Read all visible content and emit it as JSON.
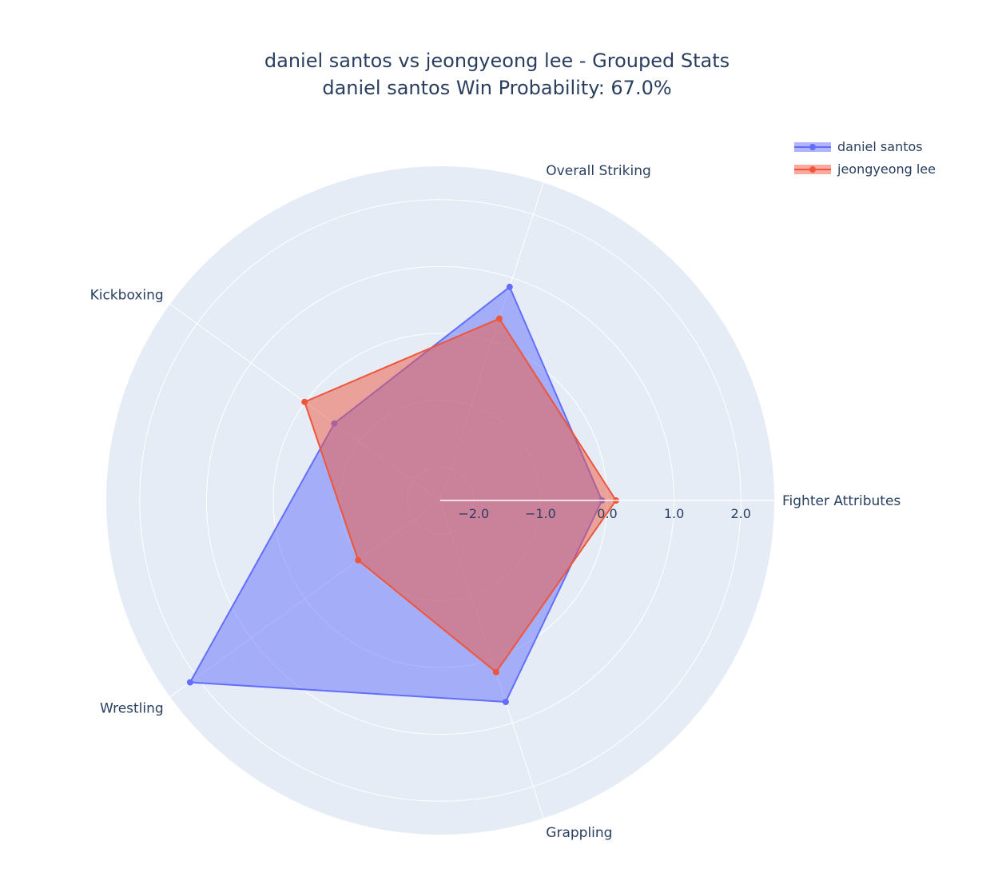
{
  "title": {
    "line1": "daniel santos vs jeongyeong lee - Grouped Stats",
    "line2": "daniel santos Win Probability: 67.0%"
  },
  "colors": {
    "polar_background": "#e5ecf6",
    "grid": "#ffffff",
    "text": "#2a3f5f"
  },
  "chart_data": {
    "type": "radar",
    "categories": [
      "Fighter Attributes",
      "Overall Striking",
      "Kickboxing",
      "Wrestling",
      "Grappling"
    ],
    "radial_axis": {
      "range": [
        -2.5,
        2.5
      ],
      "tick_values": [
        -2.0,
        -1.0,
        0.0,
        1.0,
        2.0
      ],
      "tick_labels": [
        "−2.0",
        "−1.0",
        "0.0",
        "1.0",
        "2.0"
      ]
    },
    "series": [
      {
        "name": "daniel santos",
        "color": "#636efa",
        "fill": "rgba(99,110,250,0.5)",
        "values": [
          -0.08,
          0.86,
          -0.54,
          2.13,
          0.67
        ]
      },
      {
        "name": "jeongyeong lee",
        "color": "#ef553b",
        "fill": "rgba(239,85,59,0.5)",
        "values": [
          0.13,
          0.36,
          0.01,
          -0.98,
          0.2
        ]
      }
    ],
    "legend_position": "top-right"
  }
}
